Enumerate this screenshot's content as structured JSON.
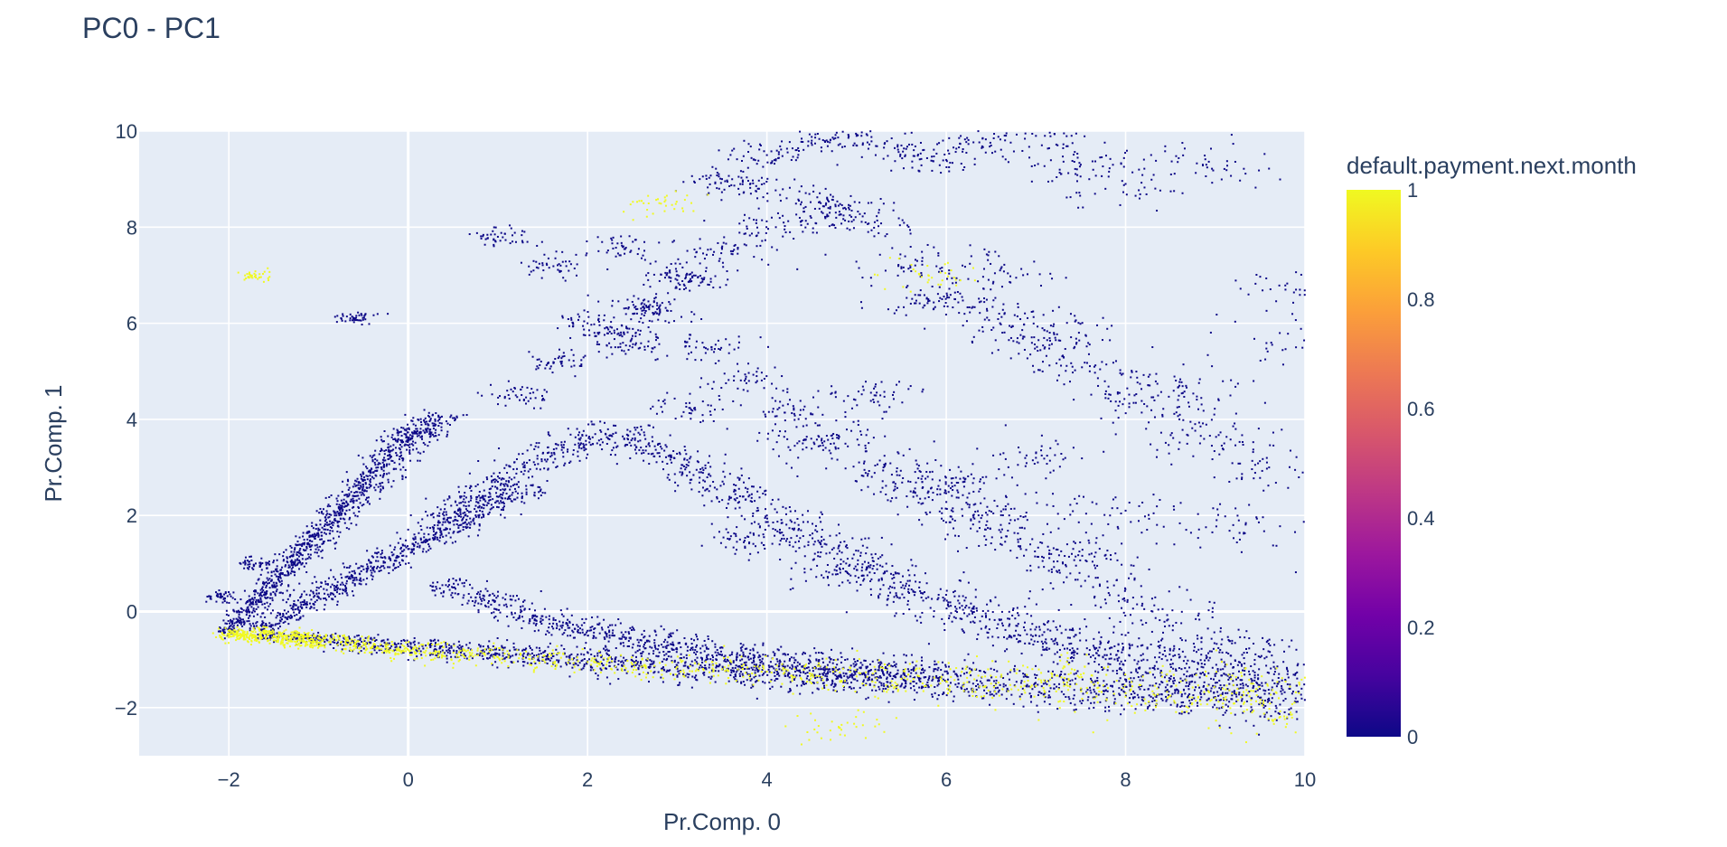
{
  "chart_data": {
    "type": "scatter",
    "title": "PC0 - PC1",
    "xlabel": "Pr.Comp. 0",
    "ylabel": "Pr.Comp. 1",
    "xlim": [
      -3,
      10
    ],
    "ylim": [
      -3,
      10
    ],
    "xticks": [
      -2,
      0,
      2,
      4,
      6,
      8,
      10
    ],
    "yticks": [
      -2,
      0,
      2,
      4,
      6,
      8,
      10
    ],
    "xtick_labels": [
      "−2",
      "0",
      "2",
      "4",
      "6",
      "8",
      "10"
    ],
    "ytick_labels": [
      "−2",
      "0",
      "2",
      "4",
      "6",
      "8",
      "10"
    ],
    "grid": true,
    "colorbar": {
      "title": "default.payment.next.month",
      "range": [
        0,
        1
      ],
      "ticks": [
        0,
        0.2,
        0.4,
        0.6,
        0.8,
        1
      ],
      "tick_labels": [
        "0",
        "0.2",
        "0.4",
        "0.6",
        "0.8",
        "1"
      ],
      "colorscale": [
        "#0d0887",
        "#46039f",
        "#7201a8",
        "#9c179e",
        "#bd3786",
        "#d8576b",
        "#ed7953",
        "#fb9f3a",
        "#fdca26",
        "#f0f921"
      ]
    },
    "color_field": "default.payment.next.month",
    "series": [
      {
        "color_value": 0,
        "x": [
          -2.1,
          -2.0,
          -1.9,
          -1.8,
          -1.7,
          -1.6,
          -1.5,
          -1.4,
          -1.3,
          -1.2,
          -1.1,
          -1.0,
          -0.9,
          -0.8,
          -0.7,
          -0.6,
          -0.5,
          -0.4,
          -0.3,
          -0.2,
          -0.1,
          0.0,
          0.1,
          0.2,
          0.3,
          -1.6,
          -1.4,
          -1.2,
          -1.0,
          -0.8,
          -0.6,
          -0.4,
          -0.2,
          0.0,
          0.2,
          0.4,
          0.6,
          0.8,
          1.0,
          1.2,
          -1.5,
          -1.2,
          -0.9,
          -0.6,
          -0.3,
          0.0,
          0.3,
          0.6,
          0.9,
          1.2,
          1.5,
          1.8,
          2.1,
          2.4,
          2.7,
          3.0,
          3.3,
          3.6,
          3.9,
          4.2,
          4.5,
          4.8,
          5.1,
          5.4,
          5.7,
          6.0,
          6.3,
          6.6,
          6.9,
          7.2,
          7.5,
          7.8,
          8.1,
          8.4,
          8.7,
          9.0,
          9.3,
          9.6,
          9.9,
          0.5,
          0.8,
          1.1,
          1.4,
          1.7,
          2.0,
          2.3,
          2.6,
          2.9,
          3.2,
          3.5,
          3.8,
          4.1,
          4.4,
          4.7,
          5.0,
          5.3,
          5.6,
          0.4,
          0.7,
          1.0,
          1.3,
          1.6,
          1.9,
          2.2,
          2.5,
          2.8,
          3.1,
          3.4,
          3.7,
          4.0,
          4.3,
          4.6,
          4.9,
          5.2,
          5.5,
          5.8,
          6.1,
          6.4,
          6.7,
          7.0,
          7.3,
          7.6,
          7.9,
          8.2,
          8.5,
          8.8,
          9.1,
          9.4,
          9.7,
          1.2,
          1.7,
          2.3,
          2.8,
          3.3,
          3.8,
          4.3,
          4.8,
          5.3,
          5.8,
          6.3,
          6.8,
          7.3,
          7.8,
          8.3,
          8.8,
          9.3,
          9.8,
          2.0,
          2.6,
          3.1,
          3.6,
          4.1,
          4.6,
          5.1,
          5.6,
          6.1,
          6.6,
          7.1,
          7.6,
          8.1,
          8.6,
          9.1,
          9.6,
          3.5,
          4.0,
          4.5,
          5.0,
          5.5,
          6.0,
          6.5,
          7.0,
          7.5,
          8.0,
          8.9,
          9.9,
          1.7,
          2.4,
          3.0,
          3.9,
          4.7,
          5.8,
          6.6,
          7.2,
          8.6,
          9.9,
          2.5,
          3.2,
          4.4,
          5.2,
          6.2,
          7.0,
          8.0,
          9.2,
          3.7,
          4.9,
          5.6,
          6.4,
          7.4,
          -0.6,
          1.0,
          -1.7
        ],
        "y": [
          0.3,
          -0.4,
          -0.2,
          0.0,
          0.2,
          0.4,
          0.6,
          0.8,
          1.0,
          1.2,
          1.4,
          1.6,
          1.8,
          2.0,
          2.2,
          2.4,
          2.6,
          2.8,
          3.0,
          3.2,
          3.4,
          3.6,
          3.7,
          3.8,
          4.0,
          -0.3,
          -0.1,
          0.1,
          0.3,
          0.5,
          0.7,
          0.9,
          1.1,
          1.3,
          1.5,
          1.7,
          1.9,
          2.1,
          2.3,
          2.5,
          -0.5,
          -0.55,
          -0.6,
          -0.65,
          -0.7,
          -0.72,
          -0.78,
          -0.82,
          -0.86,
          -0.9,
          -0.95,
          -1.0,
          -1.03,
          -1.07,
          -1.1,
          -1.14,
          -1.18,
          -1.22,
          -1.25,
          -1.28,
          -1.31,
          -1.34,
          -1.37,
          -1.4,
          -1.43,
          -1.46,
          -1.5,
          -1.53,
          -1.56,
          -1.6,
          -1.63,
          -1.66,
          -1.7,
          -1.72,
          -1.75,
          -1.79,
          -1.82,
          -1.85,
          -1.88,
          0.5,
          0.3,
          0.1,
          -0.1,
          -0.3,
          -0.4,
          -0.5,
          -0.6,
          -0.7,
          -0.8,
          -0.9,
          -1.0,
          -1.1,
          -1.15,
          -1.2,
          -1.25,
          -1.3,
          -1.35,
          2.0,
          2.4,
          2.7,
          3.0,
          3.3,
          3.5,
          3.7,
          3.6,
          3.3,
          3.0,
          2.7,
          2.4,
          2.0,
          1.7,
          1.4,
          1.1,
          0.8,
          0.5,
          0.3,
          0.1,
          -0.1,
          -0.3,
          -0.5,
          -0.7,
          -0.8,
          -0.9,
          -1.0,
          -1.1,
          -1.2,
          -1.3,
          -1.4,
          -1.5,
          4.5,
          5.2,
          5.8,
          6.2,
          5.5,
          4.8,
          4.2,
          3.6,
          3.0,
          2.5,
          2.0,
          1.5,
          1.0,
          0.5,
          0.0,
          -0.5,
          -0.9,
          -1.2,
          6.0,
          6.4,
          7.0,
          7.5,
          8.0,
          8.5,
          8.1,
          7.2,
          6.5,
          6.0,
          5.5,
          5.0,
          4.5,
          4.0,
          3.5,
          3.0,
          9.0,
          9.5,
          9.8,
          9.9,
          9.7,
          9.4,
          9.7,
          9.9,
          9.3,
          8.9,
          9.3,
          6.7,
          7.2,
          7.6,
          6.9,
          8.8,
          8.3,
          6.5,
          7.1,
          5.8,
          4.7,
          5.5,
          5.5,
          4.2,
          3.5,
          4.5,
          2.6,
          3.2,
          2.1,
          1.8,
          1.5,
          0.8,
          2.7,
          2.0,
          1.2,
          6.1,
          7.8,
          1.0
        ],
        "n_points_rendered": 9000
      },
      {
        "color_value": 1,
        "x": [
          -2.0,
          -1.9,
          -1.8,
          -1.7,
          -1.6,
          -1.5,
          -1.4,
          -1.3,
          -1.2,
          -1.1,
          -1.0,
          -0.8,
          -0.6,
          -0.4,
          -0.2,
          0.0,
          0.3,
          0.6,
          1.0,
          1.5,
          2.0,
          2.5,
          3.0,
          3.5,
          4.0,
          4.5,
          5.0,
          5.5,
          6.0,
          6.5,
          7.0,
          7.5,
          8.0,
          8.5,
          9.0,
          9.5,
          9.8,
          2.8,
          5.8,
          4.8,
          7.4,
          9.4,
          -1.7
        ],
        "y": [
          -0.5,
          -0.45,
          -0.5,
          -0.55,
          -0.4,
          -0.5,
          -0.6,
          -0.5,
          -0.55,
          -0.6,
          -0.65,
          -0.6,
          -0.7,
          -0.75,
          -0.8,
          -0.8,
          -0.85,
          -0.9,
          -0.95,
          -1.0,
          -1.05,
          -1.1,
          -1.15,
          -1.2,
          -1.25,
          -1.3,
          -1.35,
          -1.4,
          -1.45,
          -1.5,
          -1.55,
          -1.6,
          -1.7,
          -1.75,
          -1.8,
          -1.9,
          -2.2,
          8.5,
          7.0,
          -2.4,
          -1.2,
          -1.5,
          7.0
        ],
        "n_points_rendered": 1500
      }
    ]
  }
}
